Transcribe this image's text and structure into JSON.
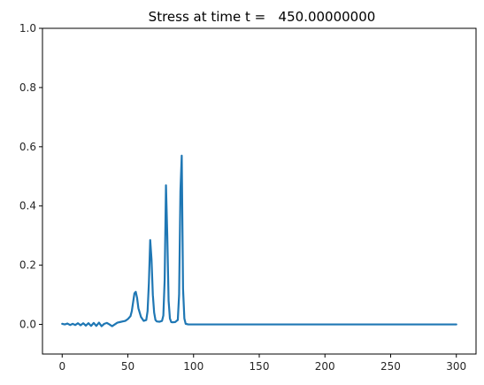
{
  "chart_data": {
    "type": "line",
    "title": "Stress at time t =   450.00000000",
    "xlabel": "",
    "ylabel": "",
    "xlim": [
      -15,
      315
    ],
    "ylim": [
      -0.1,
      1.0
    ],
    "xticks": [
      0,
      50,
      100,
      150,
      200,
      250,
      300
    ],
    "yticks": [
      0.0,
      0.2,
      0.4,
      0.6,
      0.8,
      1.0
    ],
    "xtick_labels": [
      "0",
      "50",
      "100",
      "150",
      "200",
      "250",
      "300"
    ],
    "ytick_labels": [
      "0.0",
      "0.2",
      "0.4",
      "0.6",
      "0.8",
      "1.0"
    ],
    "grid": false,
    "line_color": "#1f77b4",
    "series": [
      {
        "x": [
          0,
          2,
          4,
          6,
          8,
          10,
          12,
          14,
          16,
          18,
          20,
          22,
          24,
          26,
          28,
          30,
          32,
          34,
          36,
          38,
          40,
          42,
          44,
          46,
          48,
          50,
          52,
          53,
          54,
          55,
          56,
          57,
          58,
          60,
          62,
          64,
          65,
          66,
          67,
          68,
          69,
          70,
          71,
          72,
          74,
          76,
          77,
          78,
          79,
          80,
          81,
          82,
          83,
          84,
          86,
          88,
          89,
          90,
          91,
          92,
          93,
          94,
          96,
          100,
          150,
          200,
          250,
          300
        ],
        "y": [
          0.002,
          0.0,
          0.003,
          -0.002,
          0.002,
          -0.002,
          0.004,
          -0.003,
          0.004,
          -0.004,
          0.004,
          -0.005,
          0.005,
          -0.005,
          0.006,
          -0.006,
          0.002,
          0.005,
          0.0,
          -0.006,
          0.0,
          0.006,
          0.008,
          0.01,
          0.012,
          0.018,
          0.028,
          0.045,
          0.075,
          0.105,
          0.11,
          0.09,
          0.055,
          0.025,
          0.012,
          0.015,
          0.045,
          0.14,
          0.285,
          0.22,
          0.1,
          0.04,
          0.015,
          0.01,
          0.009,
          0.012,
          0.03,
          0.15,
          0.47,
          0.3,
          0.08,
          0.02,
          0.008,
          0.007,
          0.008,
          0.015,
          0.1,
          0.45,
          0.57,
          0.12,
          0.02,
          0.002,
          0.0,
          0.0,
          0.0,
          0.0,
          0.0,
          0.0
        ]
      }
    ]
  }
}
